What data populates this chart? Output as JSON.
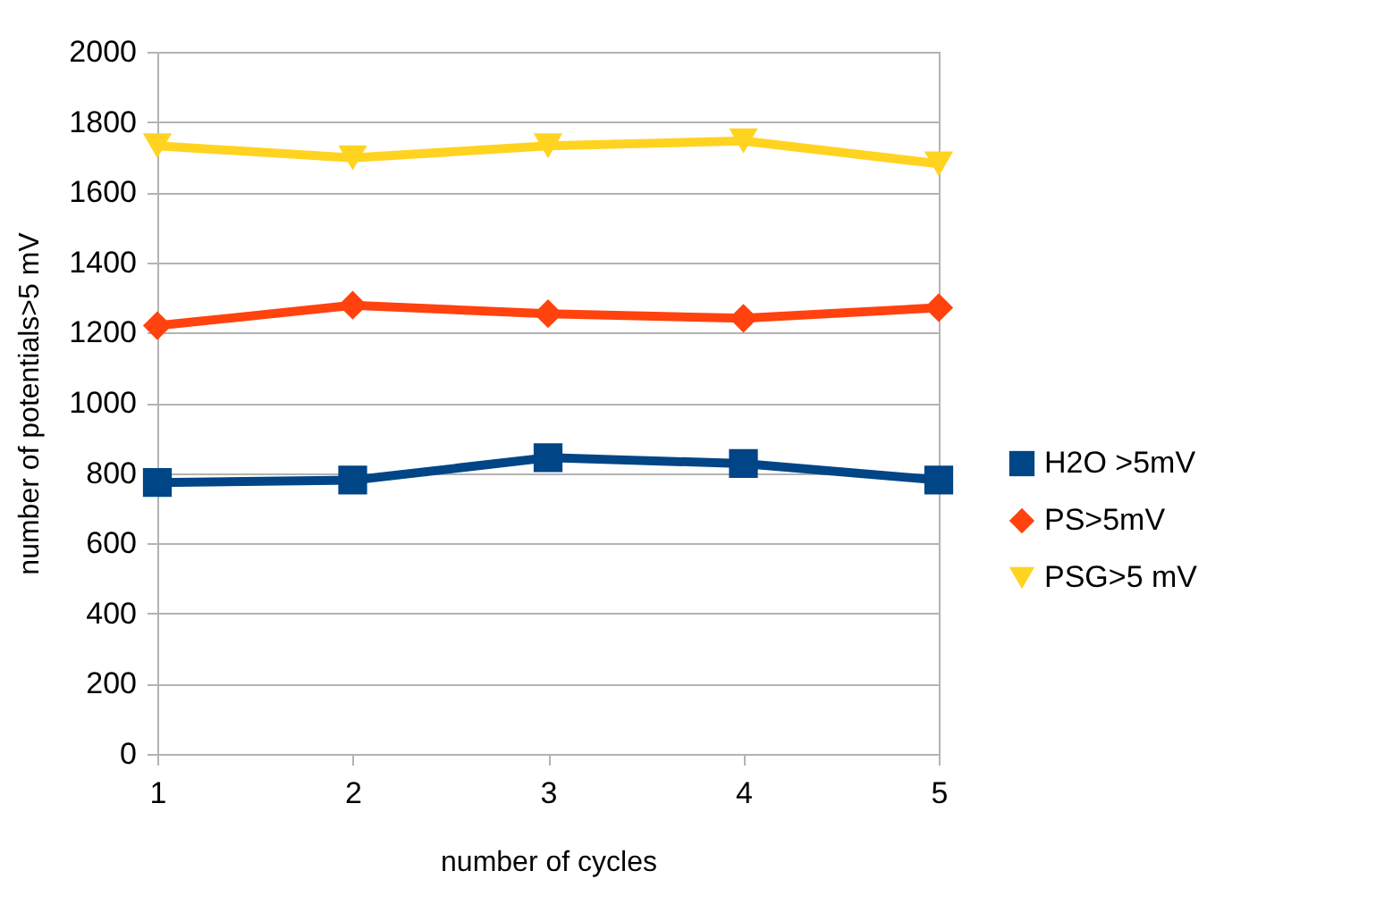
{
  "chart_data": {
    "type": "line",
    "xlabel": "number of cycles",
    "ylabel": "number of potentials>5 mV",
    "categories": [
      "1",
      "2",
      "3",
      "4",
      "5"
    ],
    "series": [
      {
        "name": "H2O >5mV",
        "color": "#004586",
        "marker": "square",
        "values": [
          773,
          780,
          844,
          827,
          780
        ]
      },
      {
        "name": "PS>5mV",
        "color": "#ff420e",
        "marker": "diamond",
        "values": [
          1220,
          1278,
          1254,
          1241,
          1271
        ]
      },
      {
        "name": "PSG>5 mV",
        "color": "#ffd320",
        "marker": "triangle",
        "values": [
          1732,
          1698,
          1732,
          1746,
          1681
        ]
      }
    ],
    "ylim": [
      0,
      2000
    ],
    "yticks": [
      0,
      200,
      400,
      600,
      800,
      1000,
      1200,
      1400,
      1600,
      1800,
      2000
    ],
    "grid": "y",
    "legend": "right",
    "line_style": "solid"
  }
}
